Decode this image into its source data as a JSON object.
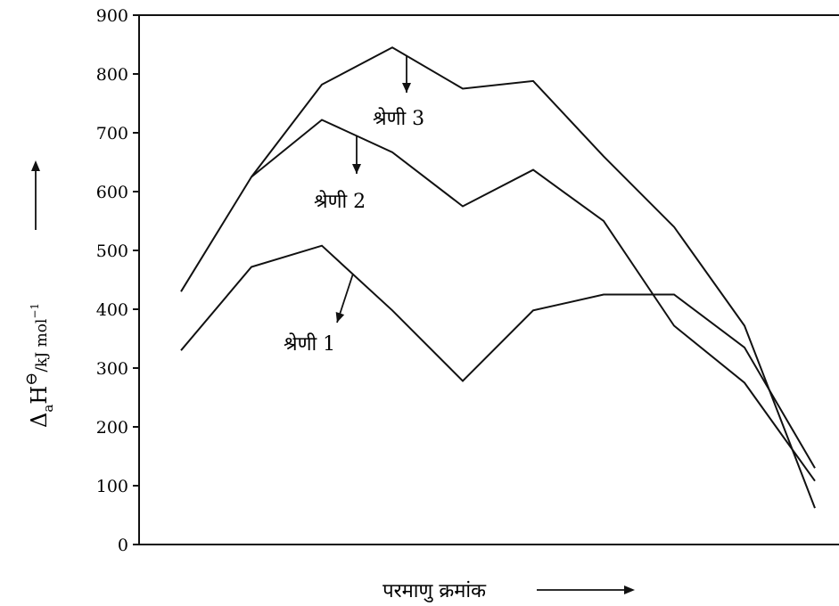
{
  "chart_data": {
    "type": "line",
    "title": "",
    "xlabel": "परमाणु क्रमांक",
    "ylabel": "ΔaH⊖/kJ mol⁻¹",
    "ylabel_parts": {
      "delta": "Δ",
      "sub": "a",
      "H": "H",
      "super": "⊖",
      "unit": "/kJ mol",
      "exp": "−1"
    },
    "ylim": [
      0,
      900
    ],
    "yticks": [
      0,
      100,
      200,
      300,
      400,
      500,
      600,
      700,
      800,
      900
    ],
    "ytick_labels": [
      "0",
      "100",
      "200",
      "300",
      "400",
      "500",
      "600",
      "700",
      "800",
      "900"
    ],
    "x": [
      1,
      2,
      3,
      4,
      5,
      6,
      7,
      8,
      9,
      10
    ],
    "grid": false,
    "series": [
      {
        "name": "श्रेणी 1",
        "values": [
          330,
          472,
          508,
          398,
          278,
          398,
          425,
          425,
          335,
          130
        ]
      },
      {
        "name": "श्रेणी 2",
        "values": [
          430,
          625,
          722,
          667,
          575,
          637,
          550,
          372,
          275,
          108
        ]
      },
      {
        "name": "श्रेणी 3",
        "values": [
          null,
          625,
          782,
          845,
          775,
          788,
          660,
          540,
          372,
          62
        ]
      }
    ]
  }
}
